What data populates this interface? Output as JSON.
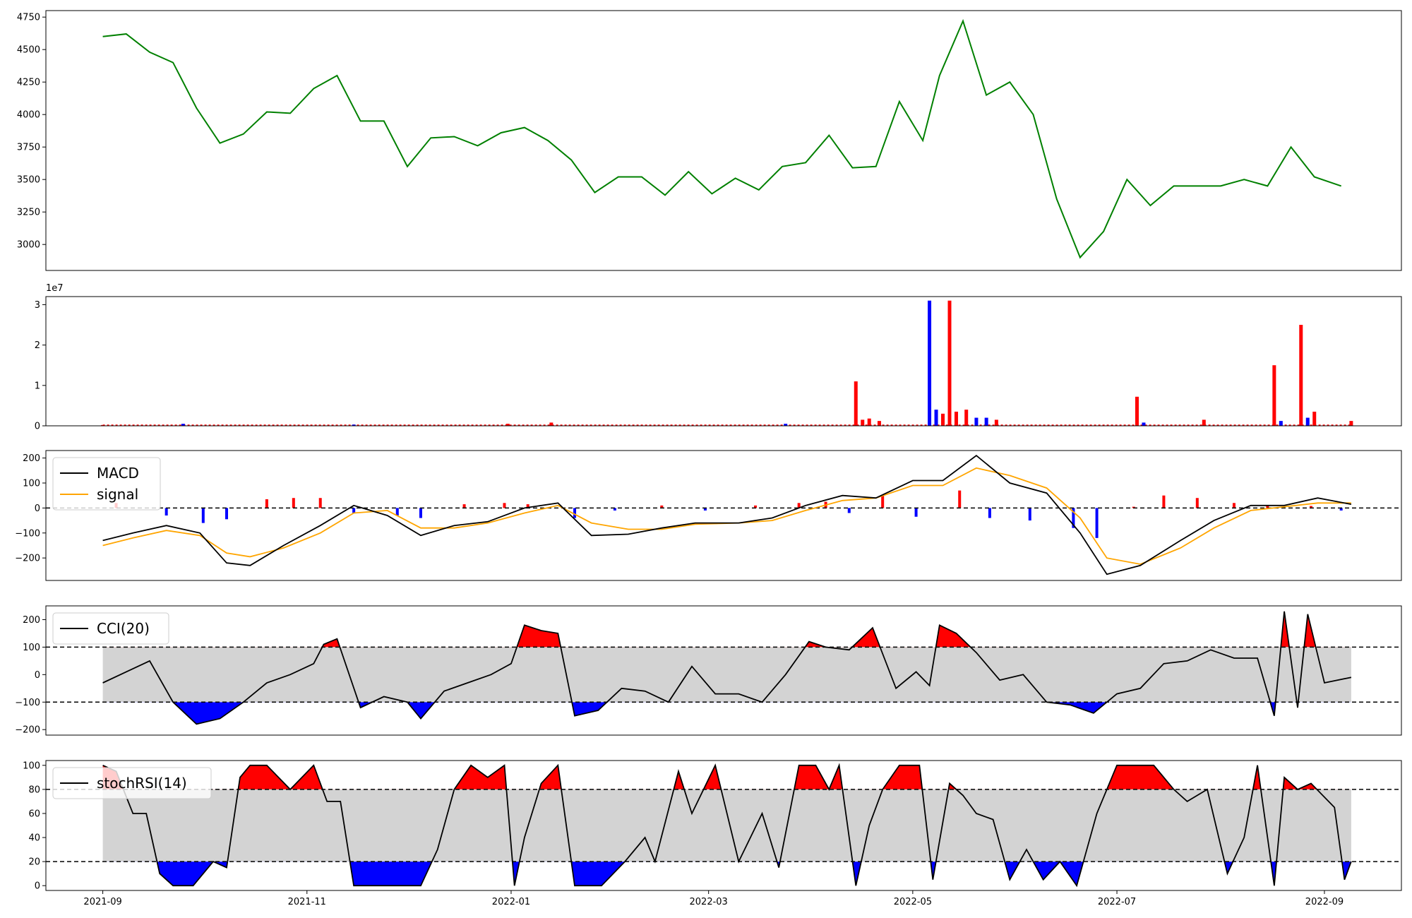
{
  "colors": {
    "price": "#008000",
    "up": "#ff0000",
    "down": "#0000ff",
    "signal": "#ffa500",
    "line": "#000000",
    "band": "#d3d3d3"
  },
  "chart_data": [
    {
      "type": "line",
      "id": "price",
      "title": "",
      "ylim": [
        2800,
        4800
      ],
      "yticks": [
        "3000",
        "3250",
        "3500",
        "3750",
        "4000",
        "4250",
        "4500",
        "4750"
      ],
      "series": [
        {
          "x": [
            "2021-09-01",
            "2021-09-08",
            "2021-09-15",
            "2021-09-22",
            "2021-09-29",
            "2021-10-06",
            "2021-10-13",
            "2021-10-20",
            "2021-10-27",
            "2021-11-03",
            "2021-11-10",
            "2021-11-17",
            "2021-11-24",
            "2021-12-01",
            "2021-12-08",
            "2021-12-15",
            "2021-12-22",
            "2021-12-29",
            "2022-01-05",
            "2022-01-12",
            "2022-01-19",
            "2022-01-26",
            "2022-02-02",
            "2022-02-09",
            "2022-02-16",
            "2022-02-23",
            "2022-03-02",
            "2022-03-09",
            "2022-03-16",
            "2022-03-23",
            "2022-03-30",
            "2022-04-06",
            "2022-04-13",
            "2022-04-20",
            "2022-04-27",
            "2022-05-04",
            "2022-05-09",
            "2022-05-16",
            "2022-05-23",
            "2022-05-30",
            "2022-06-06",
            "2022-06-13",
            "2022-06-20",
            "2022-06-27",
            "2022-07-04",
            "2022-07-11",
            "2022-07-18",
            "2022-07-25",
            "2022-08-01",
            "2022-08-08",
            "2022-08-15",
            "2022-08-22",
            "2022-08-29",
            "2022-09-06"
          ],
          "values": [
            4600,
            4620,
            4480,
            4400,
            4050,
            3780,
            3850,
            4020,
            4010,
            4200,
            4300,
            3950,
            3950,
            3600,
            3820,
            3830,
            3760,
            3860,
            3900,
            3800,
            3650,
            3400,
            3520,
            3520,
            3380,
            3560,
            3390,
            3510,
            3420,
            3600,
            3630,
            3840,
            3590,
            3600,
            4100,
            3800,
            4300,
            4720,
            4150,
            4250,
            4000,
            3350,
            2900,
            3100,
            3500,
            3300,
            3450,
            3450,
            3450,
            3500,
            3450,
            3750,
            3520,
            3450
          ]
        }
      ]
    },
    {
      "type": "bar",
      "id": "volume",
      "title": "",
      "offset_text": "1e7",
      "ylim": [
        0,
        3.2
      ],
      "yticks": [
        "0",
        "1",
        "2",
        "3"
      ],
      "x": [
        "2021-09-01",
        "2021-09-25",
        "2021-11-15",
        "2021-12-31",
        "2022-01-13",
        "2022-03-24",
        "2022-04-14",
        "2022-04-16",
        "2022-04-18",
        "2022-04-21",
        "2022-05-06",
        "2022-05-08",
        "2022-05-10",
        "2022-05-12",
        "2022-05-14",
        "2022-05-17",
        "2022-05-20",
        "2022-05-23",
        "2022-05-26",
        "2022-07-07",
        "2022-07-09",
        "2022-07-27",
        "2022-08-17",
        "2022-08-19",
        "2022-08-25",
        "2022-08-27",
        "2022-08-29",
        "2022-09-09"
      ],
      "values": [
        0.02,
        0.05,
        0.03,
        0.05,
        0.08,
        0.05,
        1.1,
        0.15,
        0.18,
        0.12,
        3.1,
        0.4,
        0.3,
        3.1,
        0.35,
        0.4,
        0.2,
        0.2,
        0.15,
        0.72,
        0.08,
        0.15,
        1.5,
        0.12,
        2.5,
        0.2,
        0.35,
        0.12
      ],
      "directions": [
        "up",
        "down",
        "down",
        "up",
        "up",
        "down",
        "up",
        "up",
        "up",
        "up",
        "down",
        "down",
        "up",
        "up",
        "up",
        "up",
        "down",
        "down",
        "up",
        "up",
        "down",
        "up",
        "up",
        "down",
        "up",
        "down",
        "up",
        "up"
      ]
    },
    {
      "type": "line",
      "id": "macd",
      "title": "",
      "ylim": [
        -290,
        230
      ],
      "yticks": [
        "−200",
        "−100",
        "0",
        "100",
        "200"
      ],
      "legend": [
        "MACD",
        "signal"
      ],
      "hist_x": [
        "2021-09-05",
        "2021-09-20",
        "2021-10-01",
        "2021-10-08",
        "2021-10-20",
        "2021-10-28",
        "2021-11-05",
        "2021-11-15",
        "2021-11-28",
        "2021-12-05",
        "2021-12-18",
        "2021-12-30",
        "2022-01-06",
        "2022-01-20",
        "2022-02-01",
        "2022-02-15",
        "2022-02-28",
        "2022-03-15",
        "2022-03-28",
        "2022-04-05",
        "2022-04-12",
        "2022-04-22",
        "2022-05-02",
        "2022-05-15",
        "2022-05-24",
        "2022-06-05",
        "2022-06-18",
        "2022-06-25",
        "2022-07-06",
        "2022-07-15",
        "2022-07-25",
        "2022-08-05",
        "2022-08-15",
        "2022-08-28",
        "2022-09-06"
      ],
      "hist_values": [
        20,
        -30,
        -60,
        -45,
        35,
        40,
        40,
        -20,
        -30,
        -40,
        15,
        20,
        15,
        -40,
        -10,
        10,
        -10,
        10,
        20,
        25,
        -20,
        50,
        -35,
        70,
        -40,
        -50,
        -80,
        -120,
        5,
        50,
        40,
        20,
        10,
        8,
        -10
      ],
      "series": [
        {
          "name": "MACD",
          "x": [
            "2021-09-01",
            "2021-09-10",
            "2021-09-20",
            "2021-09-30",
            "2021-10-08",
            "2021-10-15",
            "2021-10-25",
            "2021-11-05",
            "2021-11-15",
            "2021-11-25",
            "2021-12-05",
            "2021-12-15",
            "2021-12-25",
            "2022-01-05",
            "2022-01-15",
            "2022-01-25",
            "2022-02-05",
            "2022-02-15",
            "2022-02-25",
            "2022-03-10",
            "2022-03-20",
            "2022-03-30",
            "2022-04-10",
            "2022-04-20",
            "2022-05-01",
            "2022-05-10",
            "2022-05-20",
            "2022-05-30",
            "2022-06-10",
            "2022-06-20",
            "2022-06-28",
            "2022-07-08",
            "2022-07-20",
            "2022-07-30",
            "2022-08-10",
            "2022-08-20",
            "2022-08-30",
            "2022-09-09"
          ],
          "values": [
            -130,
            -100,
            -70,
            -100,
            -220,
            -230,
            -150,
            -70,
            10,
            -30,
            -110,
            -70,
            -55,
            0,
            20,
            -110,
            -105,
            -80,
            -60,
            -60,
            -40,
            10,
            50,
            40,
            110,
            110,
            210,
            100,
            60,
            -100,
            -265,
            -230,
            -130,
            -50,
            10,
            10,
            40,
            15
          ]
        },
        {
          "name": "signal",
          "x": [
            "2021-09-01",
            "2021-09-10",
            "2021-09-20",
            "2021-09-30",
            "2021-10-08",
            "2021-10-15",
            "2021-10-25",
            "2021-11-05",
            "2021-11-15",
            "2021-11-25",
            "2021-12-05",
            "2021-12-15",
            "2021-12-25",
            "2022-01-05",
            "2022-01-15",
            "2022-01-25",
            "2022-02-05",
            "2022-02-15",
            "2022-02-25",
            "2022-03-10",
            "2022-03-20",
            "2022-03-30",
            "2022-04-10",
            "2022-04-20",
            "2022-05-01",
            "2022-05-10",
            "2022-05-20",
            "2022-05-30",
            "2022-06-10",
            "2022-06-20",
            "2022-06-28",
            "2022-07-08",
            "2022-07-20",
            "2022-07-30",
            "2022-08-10",
            "2022-08-20",
            "2022-08-30",
            "2022-09-09"
          ],
          "values": [
            -150,
            -120,
            -90,
            -110,
            -180,
            -195,
            -160,
            -100,
            -20,
            -10,
            -80,
            -80,
            -60,
            -20,
            10,
            -60,
            -85,
            -85,
            -65,
            -60,
            -50,
            -10,
            30,
            40,
            90,
            90,
            160,
            130,
            80,
            -40,
            -200,
            -225,
            -160,
            -80,
            -10,
            5,
            20,
            20
          ]
        }
      ]
    },
    {
      "type": "line",
      "id": "cci",
      "title": "",
      "ylim": [
        -220,
        250
      ],
      "yticks": [
        "−200",
        "−100",
        "0",
        "100",
        "200"
      ],
      "legend": [
        "CCI(20)"
      ],
      "thresholds": [
        -100,
        100
      ],
      "series": [
        {
          "name": "CCI(20)",
          "x": [
            "2021-09-01",
            "2021-09-08",
            "2021-09-15",
            "2021-09-22",
            "2021-09-29",
            "2021-10-06",
            "2021-10-13",
            "2021-10-20",
            "2021-10-27",
            "2021-11-03",
            "2021-11-06",
            "2021-11-10",
            "2021-11-17",
            "2021-11-24",
            "2021-12-01",
            "2021-12-05",
            "2021-12-12",
            "2021-12-19",
            "2021-12-26",
            "2022-01-01",
            "2022-01-05",
            "2022-01-10",
            "2022-01-15",
            "2022-01-20",
            "2022-01-27",
            "2022-02-03",
            "2022-02-10",
            "2022-02-17",
            "2022-02-24",
            "2022-03-03",
            "2022-03-10",
            "2022-03-17",
            "2022-03-24",
            "2022-03-31",
            "2022-04-05",
            "2022-04-12",
            "2022-04-19",
            "2022-04-26",
            "2022-05-02",
            "2022-05-06",
            "2022-05-09",
            "2022-05-14",
            "2022-05-20",
            "2022-05-27",
            "2022-06-03",
            "2022-06-10",
            "2022-06-17",
            "2022-06-24",
            "2022-07-01",
            "2022-07-08",
            "2022-07-15",
            "2022-07-22",
            "2022-07-29",
            "2022-08-05",
            "2022-08-12",
            "2022-08-17",
            "2022-08-20",
            "2022-08-24",
            "2022-08-27",
            "2022-09-01",
            "2022-09-09"
          ],
          "values": [
            -30,
            10,
            50,
            -100,
            -180,
            -160,
            -100,
            -30,
            0,
            40,
            110,
            130,
            -120,
            -80,
            -100,
            -160,
            -60,
            -30,
            0,
            40,
            180,
            160,
            150,
            -150,
            -130,
            -50,
            -60,
            -100,
            30,
            -70,
            -70,
            -100,
            0,
            120,
            100,
            90,
            170,
            -50,
            10,
            -40,
            180,
            150,
            80,
            -20,
            0,
            -100,
            -110,
            -140,
            -70,
            -50,
            40,
            50,
            90,
            60,
            60,
            -150,
            230,
            -120,
            220,
            -30,
            -10
          ]
        }
      ]
    },
    {
      "type": "line",
      "id": "stochrsi",
      "title": "",
      "ylim": [
        -4,
        104
      ],
      "yticks": [
        "0",
        "20",
        "40",
        "60",
        "80",
        "100"
      ],
      "xticks": [
        "2021-09",
        "2021-11",
        "2022-01",
        "2022-03",
        "2022-05",
        "2022-07",
        "2022-09"
      ],
      "legend": [
        "stochRSI(14)"
      ],
      "thresholds": [
        20,
        80
      ],
      "series": [
        {
          "name": "stochRSI(14)",
          "x": [
            "2021-09-01",
            "2021-09-05",
            "2021-09-10",
            "2021-09-14",
            "2021-09-18",
            "2021-09-22",
            "2021-09-28",
            "2021-10-04",
            "2021-10-08",
            "2021-10-12",
            "2021-10-15",
            "2021-10-20",
            "2021-10-27",
            "2021-11-03",
            "2021-11-07",
            "2021-11-11",
            "2021-11-15",
            "2021-11-20",
            "2021-11-30",
            "2021-12-05",
            "2021-12-10",
            "2021-12-15",
            "2021-12-20",
            "2021-12-25",
            "2021-12-30",
            "2022-01-02",
            "2022-01-05",
            "2022-01-10",
            "2022-01-15",
            "2022-01-20",
            "2022-01-28",
            "2022-02-04",
            "2022-02-10",
            "2022-02-13",
            "2022-02-20",
            "2022-02-24",
            "2022-03-03",
            "2022-03-10",
            "2022-03-17",
            "2022-03-22",
            "2022-03-28",
            "2022-04-02",
            "2022-04-06",
            "2022-04-09",
            "2022-04-14",
            "2022-04-18",
            "2022-04-22",
            "2022-04-27",
            "2022-05-03",
            "2022-05-07",
            "2022-05-12",
            "2022-05-16",
            "2022-05-20",
            "2022-05-25",
            "2022-05-30",
            "2022-06-04",
            "2022-06-09",
            "2022-06-14",
            "2022-06-19",
            "2022-06-25",
            "2022-07-01",
            "2022-07-06",
            "2022-07-12",
            "2022-07-18",
            "2022-07-22",
            "2022-07-28",
            "2022-08-03",
            "2022-08-08",
            "2022-08-12",
            "2022-08-17",
            "2022-08-20",
            "2022-08-24",
            "2022-08-28",
            "2022-09-04",
            "2022-09-07",
            "2022-09-09"
          ],
          "values": [
            100,
            95,
            60,
            60,
            10,
            0,
            0,
            20,
            15,
            90,
            100,
            100,
            80,
            100,
            70,
            70,
            0,
            0,
            0,
            0,
            30,
            80,
            100,
            90,
            100,
            0,
            40,
            85,
            100,
            0,
            0,
            20,
            40,
            20,
            95,
            60,
            100,
            20,
            60,
            15,
            100,
            100,
            80,
            100,
            0,
            50,
            80,
            100,
            100,
            5,
            85,
            75,
            60,
            55,
            5,
            30,
            5,
            20,
            0,
            60,
            100,
            100,
            100,
            80,
            70,
            80,
            10,
            40,
            100,
            0,
            90,
            80,
            85,
            65,
            5,
            20
          ]
        }
      ]
    }
  ]
}
